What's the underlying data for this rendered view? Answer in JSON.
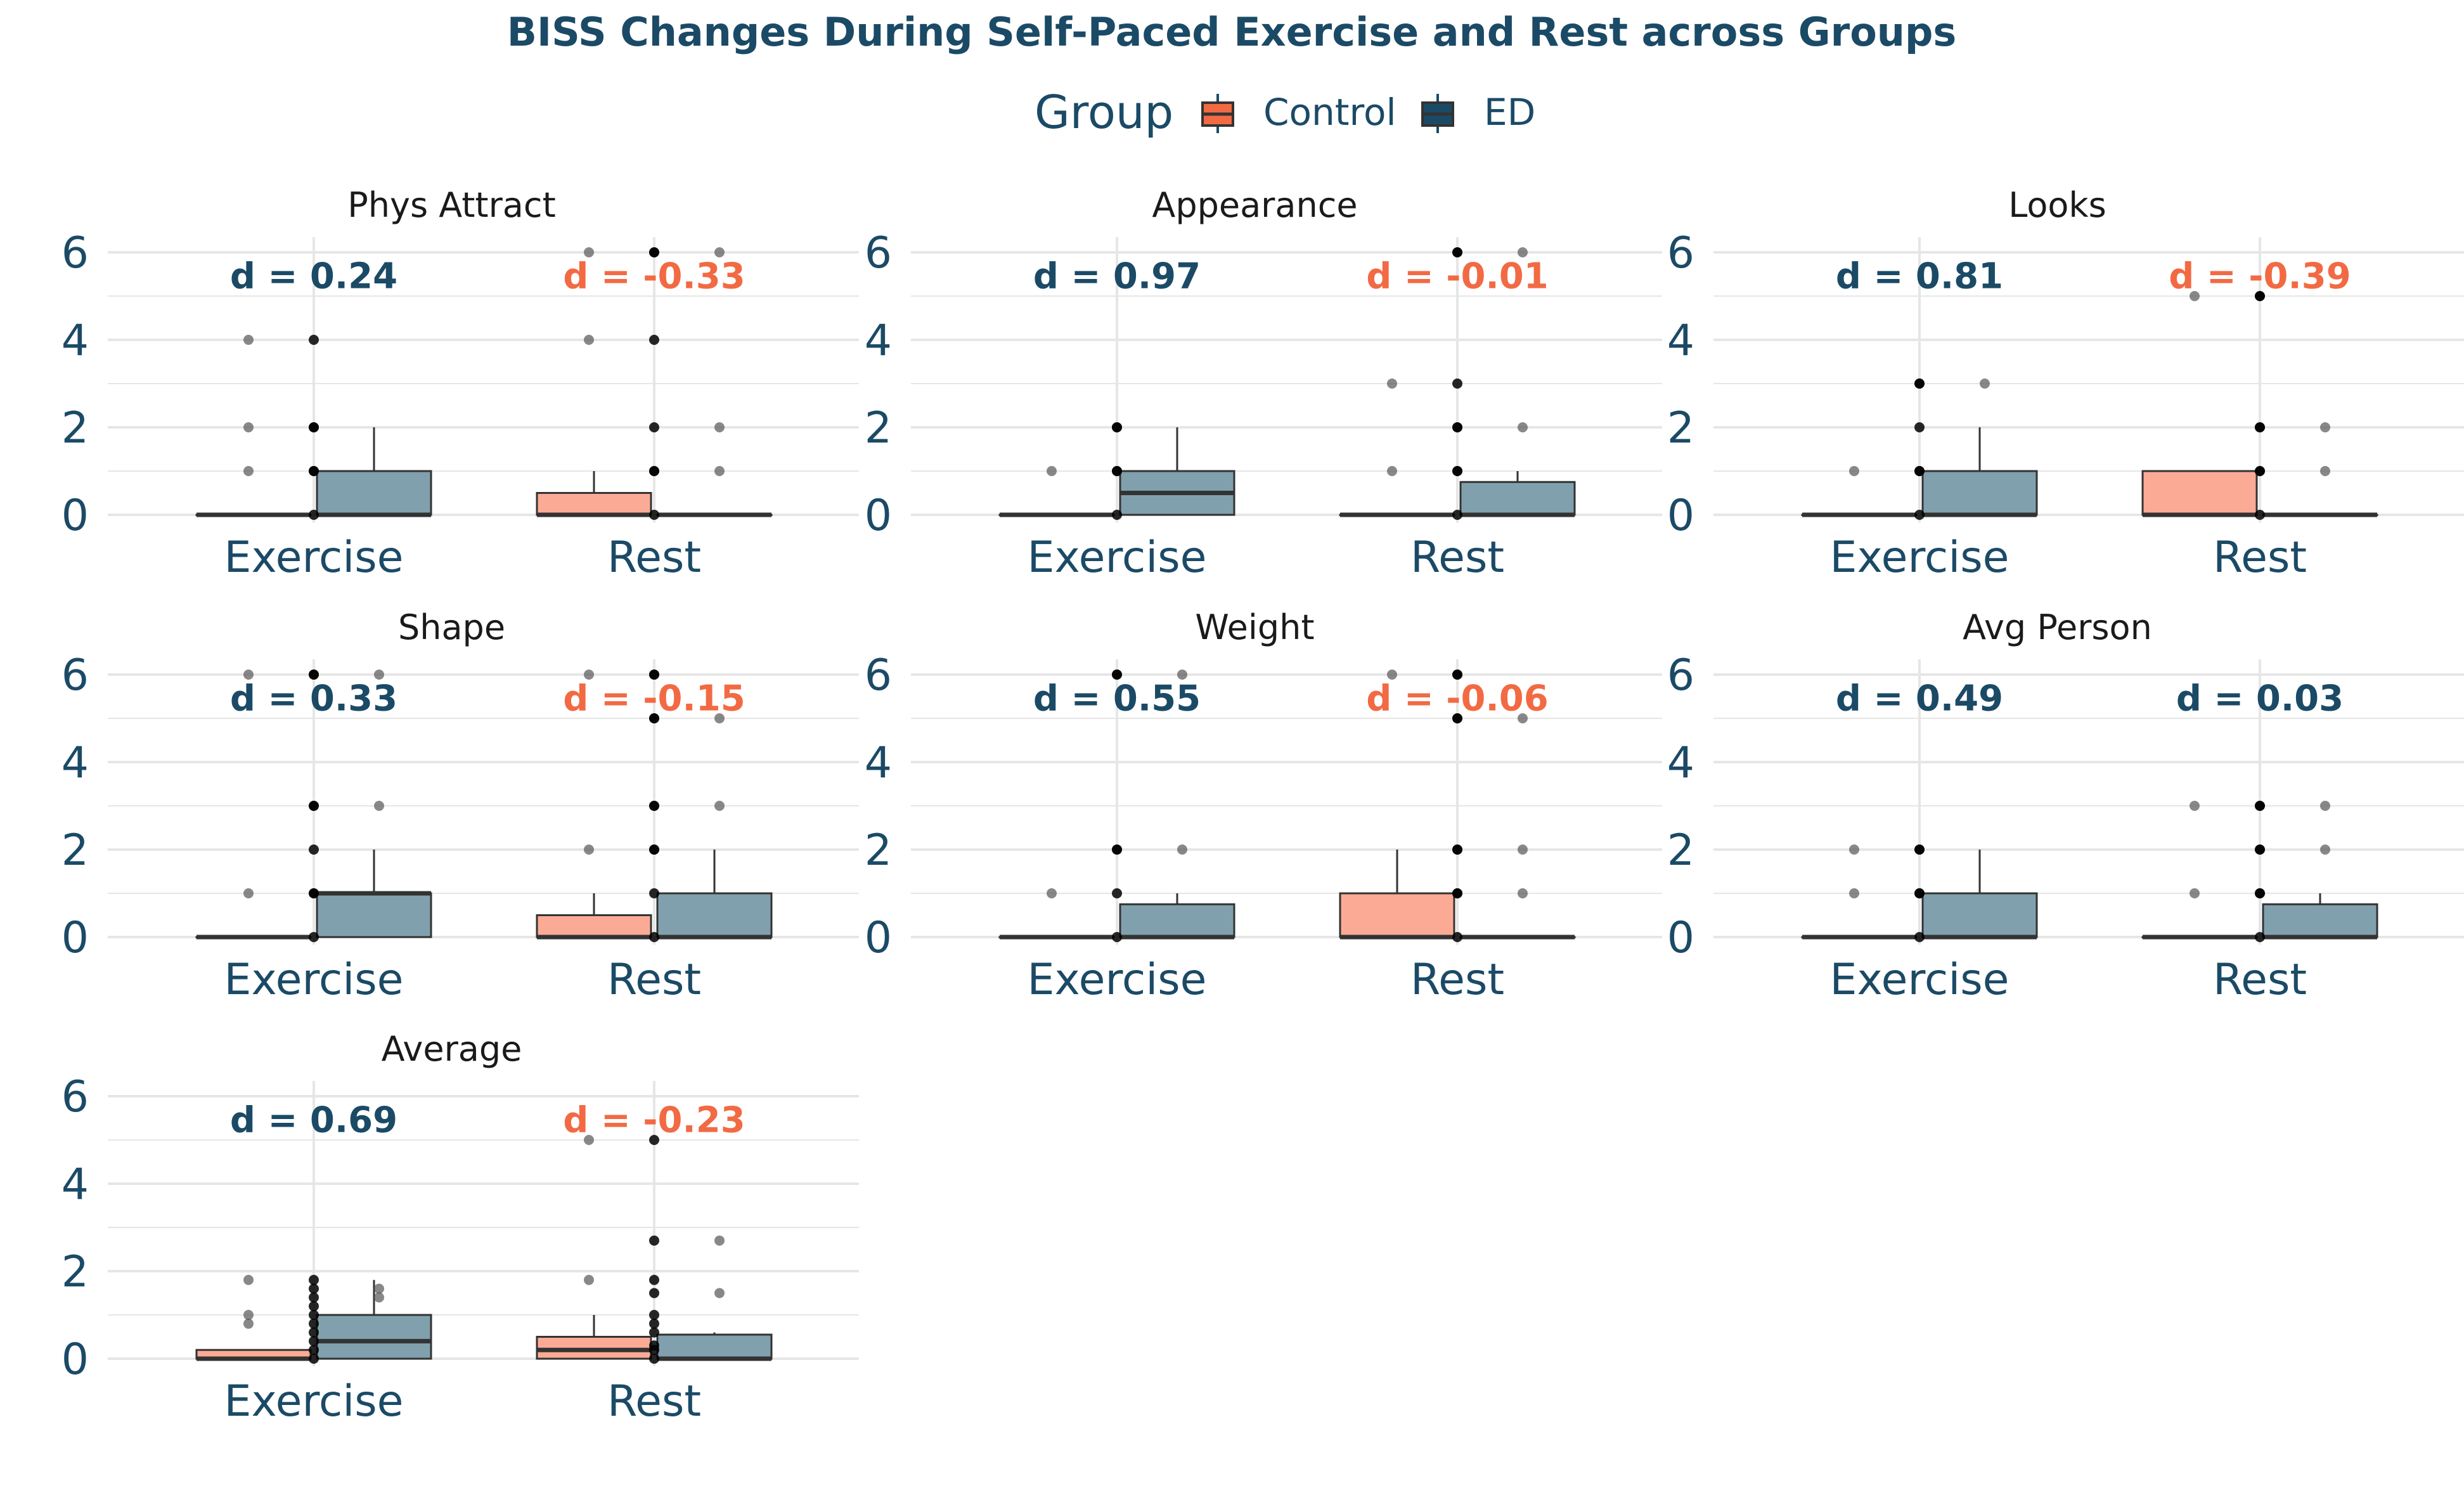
{
  "colors": {
    "text": "#1b4a66",
    "control": "#f26a43",
    "control_fill": "#fbab95",
    "ed": "#1b4a66",
    "ed_fill": "#81a0ad",
    "grid": "#e6e6e6",
    "point": "#000000"
  },
  "chart_data": {
    "type": "boxplot",
    "title": "BISS Changes During Self-Paced Exercise and Rest across Groups",
    "legend": {
      "title": "Group",
      "placement": "top",
      "entries": [
        {
          "key": "control",
          "label": "Control"
        },
        {
          "key": "ed",
          "label": "ED"
        }
      ]
    },
    "categories": [
      "Exercise",
      "Rest"
    ],
    "ylim": [
      0,
      6
    ],
    "yticks": [
      "0",
      "2",
      "4",
      "6"
    ],
    "grid": true,
    "panels": [
      {
        "strip": "Phys Attract",
        "groups": {
          "Exercise": {
            "control": {
              "q1": 0,
              "median": 0,
              "q3": 0,
              "whisker_lo": 0,
              "whisker_hi": 0,
              "outliers": [
                1,
                2,
                4
              ]
            },
            "ed": {
              "q1": 0,
              "median": 0,
              "q3": 1,
              "whisker_lo": 0,
              "whisker_hi": 2,
              "outliers": []
            },
            "points": [
              0,
              1,
              1,
              2,
              2,
              4
            ]
          },
          "Rest": {
            "control": {
              "q1": 0,
              "median": 0,
              "q3": 0.5,
              "whisker_lo": 0,
              "whisker_hi": 1,
              "outliers": [
                4,
                6
              ]
            },
            "ed": {
              "q1": 0,
              "median": 0,
              "q3": 0,
              "whisker_lo": 0,
              "whisker_hi": 0,
              "outliers": [
                1,
                2,
                6
              ]
            },
            "points": [
              0,
              1,
              1,
              2,
              4,
              6,
              6
            ]
          }
        },
        "d_labels": [
          {
            "category": "Exercise",
            "text": "d = 0.24",
            "group": "ed"
          },
          {
            "category": "Rest",
            "text": "d = -0.33",
            "group": "control"
          }
        ]
      },
      {
        "strip": "Appearance",
        "groups": {
          "Exercise": {
            "control": {
              "q1": 0,
              "median": 0,
              "q3": 0,
              "whisker_lo": 0,
              "whisker_hi": 0,
              "outliers": [
                1
              ]
            },
            "ed": {
              "q1": 0,
              "median": 0.5,
              "q3": 1,
              "whisker_lo": 0,
              "whisker_hi": 2,
              "outliers": []
            },
            "points": [
              0,
              1,
              1,
              2,
              2
            ]
          },
          "Rest": {
            "control": {
              "q1": 0,
              "median": 0,
              "q3": 0,
              "whisker_lo": 0,
              "whisker_hi": 0,
              "outliers": [
                1,
                3
              ]
            },
            "ed": {
              "q1": 0,
              "median": 0,
              "q3": 0.75,
              "whisker_lo": 0,
              "whisker_hi": 1,
              "outliers": [
                2,
                6
              ]
            },
            "points": [
              0,
              1,
              1,
              2,
              2,
              3,
              6,
              6
            ]
          }
        },
        "d_labels": [
          {
            "category": "Exercise",
            "text": "d = 0.97",
            "group": "ed"
          },
          {
            "category": "Rest",
            "text": "d = -0.01",
            "group": "control"
          }
        ]
      },
      {
        "strip": "Looks",
        "groups": {
          "Exercise": {
            "control": {
              "q1": 0,
              "median": 0,
              "q3": 0,
              "whisker_lo": 0,
              "whisker_hi": 0,
              "outliers": [
                1
              ]
            },
            "ed": {
              "q1": 0,
              "median": 0,
              "q3": 1,
              "whisker_lo": 0,
              "whisker_hi": 2,
              "outliers": [
                3
              ]
            },
            "points": [
              0,
              1,
              1,
              2,
              3,
              3
            ]
          },
          "Rest": {
            "control": {
              "q1": 0,
              "median": 0,
              "q3": 1,
              "whisker_lo": 0,
              "whisker_hi": 1,
              "outliers": [
                5
              ]
            },
            "ed": {
              "q1": 0,
              "median": 0,
              "q3": 0,
              "whisker_lo": 0,
              "whisker_hi": 0,
              "outliers": [
                1,
                2
              ]
            },
            "points": [
              0,
              1,
              1,
              2,
              2,
              5,
              5
            ]
          }
        },
        "d_labels": [
          {
            "category": "Exercise",
            "text": "d = 0.81",
            "group": "ed"
          },
          {
            "category": "Rest",
            "text": "d = -0.39",
            "group": "control"
          }
        ]
      },
      {
        "strip": "Shape",
        "groups": {
          "Exercise": {
            "control": {
              "q1": 0,
              "median": 0,
              "q3": 0,
              "whisker_lo": 0,
              "whisker_hi": 0,
              "outliers": [
                1,
                6
              ]
            },
            "ed": {
              "q1": 0,
              "median": 1,
              "q3": 1,
              "whisker_lo": 0,
              "whisker_hi": 2,
              "outliers": [
                3,
                6
              ]
            },
            "points": [
              0,
              1,
              1,
              2,
              3,
              3,
              6,
              6
            ]
          },
          "Rest": {
            "control": {
              "q1": 0,
              "median": 0,
              "q3": 0.5,
              "whisker_lo": 0,
              "whisker_hi": 1,
              "outliers": [
                2,
                6
              ]
            },
            "ed": {
              "q1": 0,
              "median": 0,
              "q3": 1,
              "whisker_lo": 0,
              "whisker_hi": 2,
              "outliers": [
                3,
                5
              ]
            },
            "points": [
              0,
              1,
              2,
              2,
              3,
              3,
              5,
              5,
              6,
              6
            ]
          }
        },
        "d_labels": [
          {
            "category": "Exercise",
            "text": "d = 0.33",
            "group": "ed"
          },
          {
            "category": "Rest",
            "text": "d = -0.15",
            "group": "control"
          }
        ]
      },
      {
        "strip": "Weight",
        "groups": {
          "Exercise": {
            "control": {
              "q1": 0,
              "median": 0,
              "q3": 0,
              "whisker_lo": 0,
              "whisker_hi": 0,
              "outliers": [
                1
              ]
            },
            "ed": {
              "q1": 0,
              "median": 0,
              "q3": 0.75,
              "whisker_lo": 0,
              "whisker_hi": 1,
              "outliers": [
                2,
                6
              ]
            },
            "points": [
              0,
              1,
              2,
              2,
              6,
              6
            ]
          },
          "Rest": {
            "control": {
              "q1": 0,
              "median": 0,
              "q3": 1,
              "whisker_lo": 0,
              "whisker_hi": 2,
              "outliers": [
                6
              ]
            },
            "ed": {
              "q1": 0,
              "median": 0,
              "q3": 0,
              "whisker_lo": 0,
              "whisker_hi": 0,
              "outliers": [
                1,
                2,
                5
              ]
            },
            "points": [
              0,
              1,
              1,
              2,
              2,
              5,
              5,
              6,
              6
            ]
          }
        },
        "d_labels": [
          {
            "category": "Exercise",
            "text": "d = 0.55",
            "group": "ed"
          },
          {
            "category": "Rest",
            "text": "d = -0.06",
            "group": "control"
          }
        ]
      },
      {
        "strip": "Avg Person",
        "groups": {
          "Exercise": {
            "control": {
              "q1": 0,
              "median": 0,
              "q3": 0,
              "whisker_lo": 0,
              "whisker_hi": 0,
              "outliers": [
                1,
                2
              ]
            },
            "ed": {
              "q1": 0,
              "median": 0,
              "q3": 1,
              "whisker_lo": 0,
              "whisker_hi": 2,
              "outliers": []
            },
            "points": [
              0,
              1,
              1,
              2,
              2
            ]
          },
          "Rest": {
            "control": {
              "q1": 0,
              "median": 0,
              "q3": 0,
              "whisker_lo": 0,
              "whisker_hi": 0,
              "outliers": [
                1,
                3
              ]
            },
            "ed": {
              "q1": 0,
              "median": 0,
              "q3": 0.75,
              "whisker_lo": 0,
              "whisker_hi": 1,
              "outliers": [
                2,
                3
              ]
            },
            "points": [
              0,
              1,
              1,
              2,
              2,
              3,
              3
            ]
          }
        },
        "d_labels": [
          {
            "category": "Exercise",
            "text": "d = 0.49",
            "group": "ed"
          },
          {
            "category": "Rest",
            "text": "d = 0.03",
            "group": "ed"
          }
        ]
      },
      {
        "strip": "Average",
        "groups": {
          "Exercise": {
            "control": {
              "q1": 0,
              "median": 0,
              "q3": 0.2,
              "whisker_lo": 0,
              "whisker_hi": 0.2,
              "outliers": [
                0.8,
                1,
                1.8
              ]
            },
            "ed": {
              "q1": 0,
              "median": 0.4,
              "q3": 1,
              "whisker_lo": 0,
              "whisker_hi": 1.8,
              "outliers": [
                1.4,
                1.6
              ]
            },
            "points": [
              0,
              0.2,
              0.4,
              0.6,
              0.8,
              1,
              1.2,
              1.4,
              1.6,
              1.8
            ]
          },
          "Rest": {
            "control": {
              "q1": 0,
              "median": 0.2,
              "q3": 0.5,
              "whisker_lo": 0,
              "whisker_hi": 1,
              "outliers": [
                1.8,
                5
              ]
            },
            "ed": {
              "q1": 0,
              "median": 0,
              "q3": 0.55,
              "whisker_lo": 0,
              "whisker_hi": 0.6,
              "outliers": [
                1.5,
                2.7
              ]
            },
            "points": [
              0,
              0.2,
              0.3,
              0.6,
              0.8,
              1,
              1.5,
              1.8,
              2.7,
              5
            ]
          }
        },
        "d_labels": [
          {
            "category": "Exercise",
            "text": "d = 0.69",
            "group": "ed"
          },
          {
            "category": "Rest",
            "text": "d = -0.23",
            "group": "control"
          }
        ]
      }
    ]
  }
}
